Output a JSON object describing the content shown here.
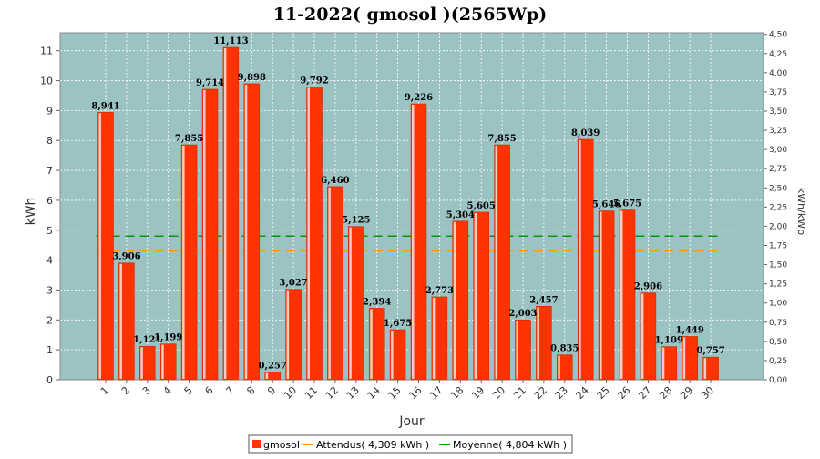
{
  "chart_data": {
    "type": "bar",
    "title": "11-2022( gmosol )(2565Wp)",
    "xlabel": "Jour",
    "ylabel": "kWh",
    "y2label": "kWh/kWp",
    "ylim": [
      0,
      11.6
    ],
    "yticks": [
      "0",
      "1",
      "2",
      "3",
      "4",
      "5",
      "6",
      "7",
      "8",
      "9",
      "10",
      "11"
    ],
    "y2lim": [
      0,
      4.52
    ],
    "y2ticks": [
      "0,00",
      "0,25",
      "0,50",
      "0,75",
      "1,00",
      "1,25",
      "1,50",
      "1,75",
      "2,00",
      "2,25",
      "2,50",
      "2,75",
      "3,00",
      "3,25",
      "3,50",
      "3,75",
      "4,00",
      "4,25",
      "4,50"
    ],
    "grid": true,
    "categories": [
      "1",
      "2",
      "3",
      "4",
      "5",
      "6",
      "7",
      "8",
      "9",
      "10",
      "11",
      "12",
      "13",
      "14",
      "15",
      "16",
      "17",
      "18",
      "19",
      "20",
      "21",
      "22",
      "23",
      "24",
      "25",
      "26",
      "27",
      "28",
      "29",
      "30"
    ],
    "series": [
      {
        "name": "gmosol",
        "color": "#ff3300",
        "values": [
          8.941,
          3.906,
          1.121,
          1.199,
          7.855,
          9.714,
          11.113,
          9.898,
          0.257,
          3.027,
          9.792,
          6.46,
          5.125,
          2.394,
          1.675,
          9.226,
          2.773,
          5.304,
          5.605,
          7.855,
          2.003,
          2.457,
          0.835,
          8.039,
          5.646,
          5.675,
          2.906,
          1.109,
          1.449,
          0.757
        ],
        "labels": [
          "8,941",
          "3,906",
          "1,121",
          "1,199",
          "7,855",
          "9,714",
          "11,113",
          "9,898",
          "0,257",
          "3,027",
          "9,792",
          "6,460",
          "5,125",
          "2,394",
          "1,675",
          "9,226",
          "2,773",
          "5,304",
          "5,605",
          "7,855",
          "2,003",
          "2,457",
          "0,835",
          "8,039",
          "5,646",
          "5,675",
          "2,906",
          "1,109",
          "1,449",
          "0,757"
        ]
      }
    ],
    "reference_lines": [
      {
        "name": "Attendus( 4,309 kWh )",
        "value": 4.309,
        "color": "#ff9900",
        "style": "dashed"
      },
      {
        "name": "Moyenne( 4,804 kWh )",
        "value": 4.804,
        "color": "#009900",
        "style": "dashed"
      }
    ],
    "legend": {
      "position": "bottom",
      "items": [
        "gmosol",
        "Attendus( 4,309 kWh )",
        "Moyenne( 4,804 kWh )"
      ]
    },
    "colors": {
      "plot_background": "#9bc3c4",
      "bar": "#ff3300",
      "bar_highlight": "#ffffff"
    }
  }
}
